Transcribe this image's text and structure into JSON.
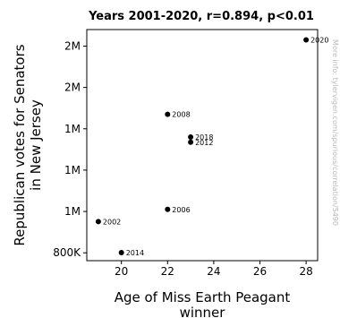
{
  "chart_data": {
    "type": "scatter",
    "title": "Years 2001-2020, r=0.894, p<0.01",
    "xlabel_lines": [
      "Age of Miss Earth Peagant",
      "winner"
    ],
    "ylabel_lines": [
      "Republican votes for Senators",
      "in New Jersey"
    ],
    "xlim": [
      18.5,
      28.5
    ],
    "ylim": [
      762000,
      1880000
    ],
    "x_ticks": [
      20,
      22,
      24,
      26,
      28
    ],
    "y_ticks": [
      {
        "value": 800000,
        "label": "800K"
      },
      {
        "value": 1000000,
        "label": "1M"
      },
      {
        "value": 1200000,
        "label": "1M"
      },
      {
        "value": 1400000,
        "label": "1M"
      },
      {
        "value": 1600000,
        "label": "2M"
      },
      {
        "value": 1800000,
        "label": "2M"
      }
    ],
    "points": [
      {
        "x": 19,
        "y": 951000,
        "label": "2002"
      },
      {
        "x": 20,
        "y": 801000,
        "label": "2014"
      },
      {
        "x": 22,
        "y": 1010000,
        "label": "2006"
      },
      {
        "x": 22,
        "y": 1470000,
        "label": "2008"
      },
      {
        "x": 23,
        "y": 1360000,
        "label": "2018"
      },
      {
        "x": 23,
        "y": 1335000,
        "label": "2012"
      },
      {
        "x": 28,
        "y": 1830000,
        "label": "2020"
      }
    ],
    "grid": false,
    "marker_color": "#000000"
  },
  "watermark": "More info: tylervigen.com/spurious/correlation/5490"
}
